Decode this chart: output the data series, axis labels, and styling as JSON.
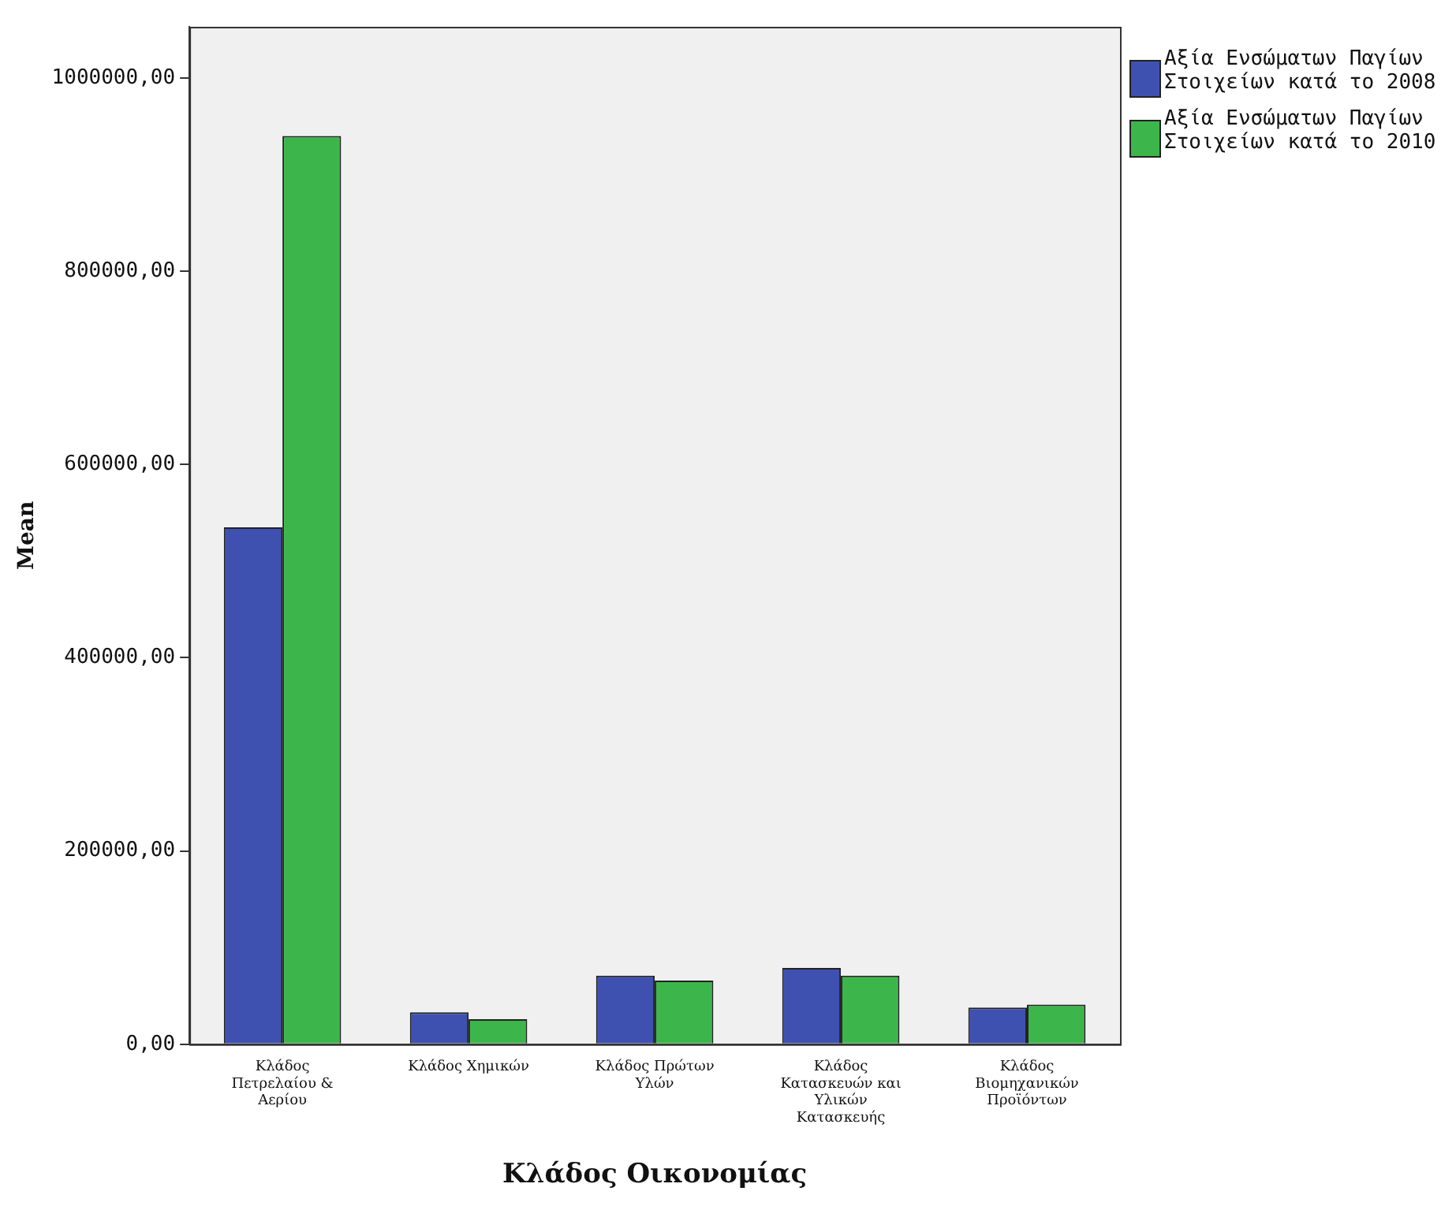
{
  "chart_data": {
    "type": "bar",
    "xlabel": "Κλάδος Οικονομίας",
    "ylabel": "Mean",
    "categories": [
      "Κλάδος Πετρελαίου & Αερίου",
      "Κλάδος Χημικών",
      "Κλάδος Πρώτων Υλών",
      "Κλάδος Κατασκευών και Υλικών Κατασκευής",
      "Κλάδος Βιομηχανικών Προϊόντων"
    ],
    "series": [
      {
        "name": "Αξία Ενσώματων Παγίων Στοιχείων κατά το 2008",
        "color": "#3f51b0",
        "values": [
          535000,
          33000,
          71000,
          79000,
          38000
        ]
      },
      {
        "name": "Αξία Ενσώματων Παγίων Στοιχείων κατά το 2010",
        "color": "#3cb64a",
        "values": [
          940000,
          26000,
          66000,
          71000,
          41000
        ]
      }
    ],
    "ylim": [
      0,
      1053000
    ],
    "yticks": [
      {
        "value": 0,
        "label": "0,00"
      },
      {
        "value": 200000,
        "label": "200000,00"
      },
      {
        "value": 400000,
        "label": "400000,00"
      },
      {
        "value": 600000,
        "label": "600000,00"
      },
      {
        "value": 800000,
        "label": "800000,00"
      },
      {
        "value": 1000000,
        "label": "1000000,00"
      }
    ],
    "grid": false,
    "legend": "top right"
  }
}
